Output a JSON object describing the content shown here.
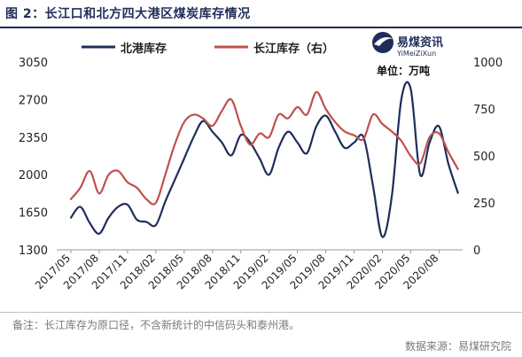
{
  "title": "图 2：长江口和北方四大港区煤炭库存情况",
  "watermark": {
    "cn": "易煤资讯",
    "en": "YiMeiZiXun",
    "unit": "单位：万吨"
  },
  "note": "备注：长江库存为原口径，不含新统计的中信码头和泰州港。",
  "source": "数据来源：易煤研究院",
  "colors": {
    "north": "#1f2d5a",
    "yangtze": "#c0504d",
    "title": "#1f2d5a"
  },
  "chart_data": {
    "type": "line",
    "x_ticks": [
      "2017/05",
      "2017/08",
      "2017/11",
      "2018/02",
      "2018/05",
      "2018/08",
      "2018/11",
      "2019/02",
      "2019/05",
      "2019/08",
      "2019/11",
      "2020/02",
      "2020/05",
      "2020/08"
    ],
    "left_axis": {
      "ticks": [
        "1300",
        "1650",
        "2000",
        "2350",
        "2700",
        "3050"
      ],
      "ylim": [
        1300,
        3050
      ]
    },
    "right_axis": {
      "ticks": [
        "0",
        "250",
        "500",
        "750",
        "1000"
      ],
      "ylim": [
        0,
        1000
      ]
    },
    "series": [
      {
        "name": "北港库存",
        "axis": "left",
        "color": "#1f2d5a",
        "x": [
          "2017/05",
          "2017/06",
          "2017/07",
          "2017/08",
          "2017/09",
          "2017/10",
          "2017/11",
          "2017/12",
          "2018/01",
          "2018/02",
          "2018/03",
          "2018/04",
          "2018/05",
          "2018/06",
          "2018/07",
          "2018/08",
          "2018/09",
          "2018/10",
          "2018/11",
          "2018/12",
          "2019/01",
          "2019/02",
          "2019/03",
          "2019/04",
          "2019/05",
          "2019/06",
          "2019/07",
          "2019/08",
          "2019/09",
          "2019/10",
          "2019/11",
          "2019/12",
          "2020/01",
          "2020/02",
          "2020/03",
          "2020/04",
          "2020/05",
          "2020/06",
          "2020/07",
          "2020/08",
          "2020/09",
          "2020/10"
        ],
        "values": [
          1600,
          1700,
          1550,
          1450,
          1600,
          1700,
          1720,
          1580,
          1560,
          1530,
          1750,
          1950,
          2150,
          2350,
          2500,
          2400,
          2300,
          2180,
          2370,
          2300,
          2150,
          2000,
          2250,
          2400,
          2300,
          2200,
          2450,
          2550,
          2400,
          2250,
          2300,
          2350,
          1900,
          1420,
          1800,
          2700,
          2800,
          2000,
          2300,
          2450,
          2100,
          1830
        ]
      },
      {
        "name": "长江库存（右）",
        "axis": "right",
        "color": "#c0504d",
        "x": [
          "2017/05",
          "2017/06",
          "2017/07",
          "2017/08",
          "2017/09",
          "2017/10",
          "2017/11",
          "2017/12",
          "2018/01",
          "2018/02",
          "2018/03",
          "2018/04",
          "2018/05",
          "2018/06",
          "2018/07",
          "2018/08",
          "2018/09",
          "2018/10",
          "2018/11",
          "2018/12",
          "2019/01",
          "2019/02",
          "2019/03",
          "2019/04",
          "2019/05",
          "2019/06",
          "2019/07",
          "2019/08",
          "2019/09",
          "2019/10",
          "2019/11",
          "2019/12",
          "2020/01",
          "2020/02",
          "2020/03",
          "2020/04",
          "2020/05",
          "2020/06",
          "2020/07",
          "2020/08",
          "2020/09",
          "2020/10"
        ],
        "values": [
          270,
          330,
          420,
          300,
          400,
          420,
          360,
          330,
          270,
          250,
          400,
          560,
          680,
          720,
          700,
          660,
          740,
          800,
          660,
          560,
          620,
          600,
          720,
          700,
          760,
          720,
          840,
          750,
          680,
          630,
          610,
          590,
          720,
          670,
          630,
          580,
          500,
          460,
          600,
          620,
          520,
          430
        ]
      }
    ],
    "legend": {
      "position": "top",
      "entries": [
        "北港库存",
        "长江库存（右）"
      ]
    },
    "grid": false
  }
}
